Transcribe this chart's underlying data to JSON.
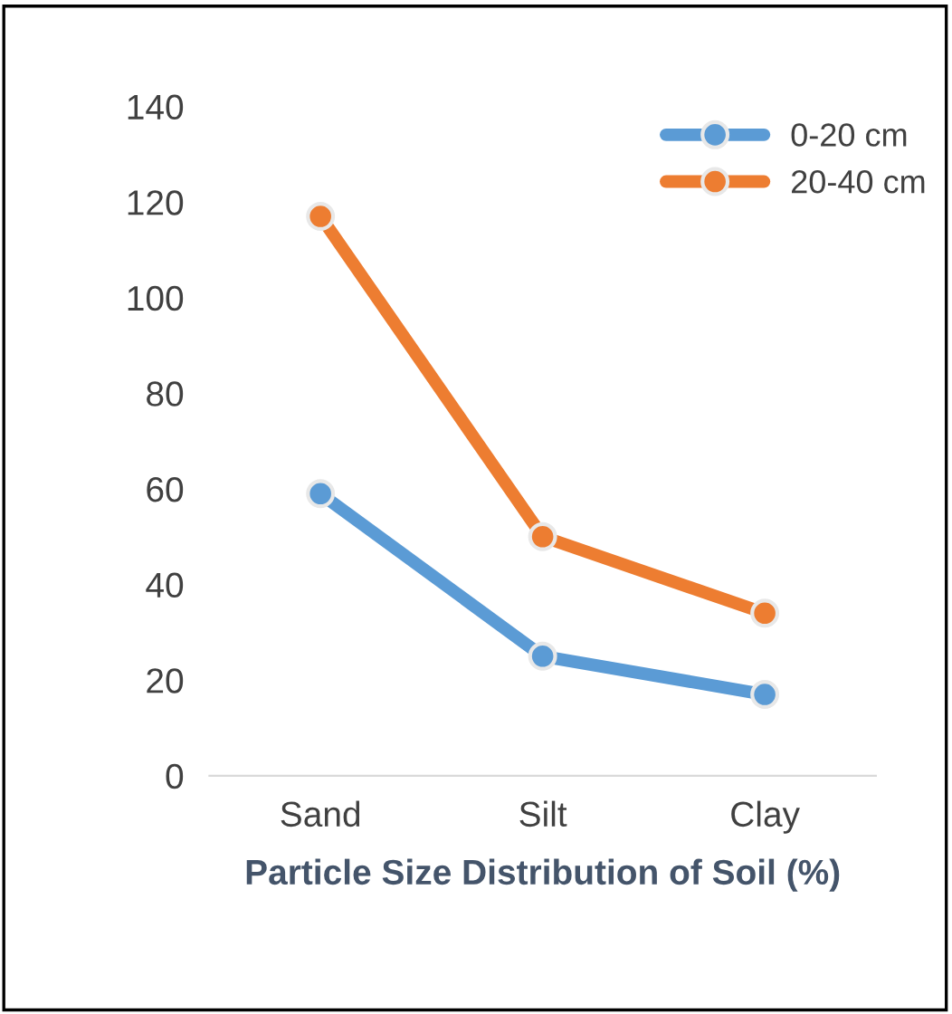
{
  "chart_data": {
    "type": "line",
    "xlabel": "Particle Size Distribution of Soil (%)",
    "categories": [
      "Sand",
      "Silt",
      "Clay"
    ],
    "series": [
      {
        "name": "0-20 cm",
        "color": "#5b9bd5",
        "values": [
          59,
          25,
          17
        ]
      },
      {
        "name": "20-40 cm",
        "color": "#ed7d31",
        "values": [
          117,
          50,
          34
        ]
      }
    ],
    "ylim": [
      0,
      140
    ],
    "yticks": [
      0,
      20,
      40,
      60,
      80,
      100,
      120,
      140
    ],
    "grid": false,
    "legend": "top right",
    "marker": "circle",
    "line_style": "solid"
  }
}
